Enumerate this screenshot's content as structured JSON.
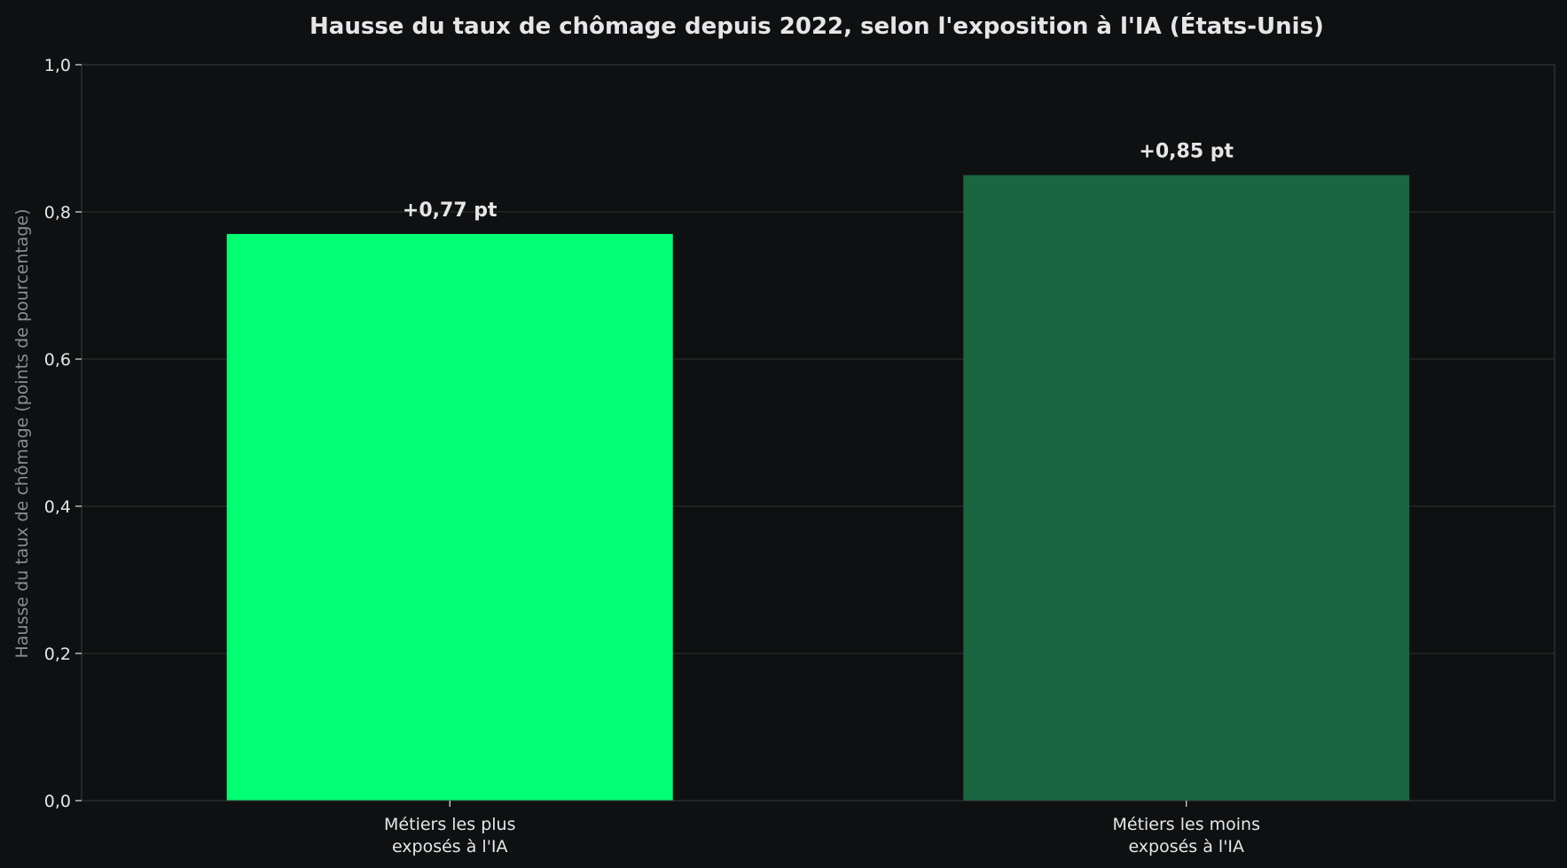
{
  "chart_data": {
    "type": "bar",
    "title": "Hausse du taux de chômage depuis 2022, selon l'exposition à l'IA (États-Unis)",
    "xlabel": "",
    "ylabel": "Hausse du taux de chômage (points de pourcentage)",
    "categories": [
      [
        "Métiers les plus",
        "exposés à l'IA"
      ],
      [
        "Métiers les moins",
        "exposés à l'IA"
      ]
    ],
    "values": [
      0.77,
      0.85
    ],
    "data_labels": [
      "+0,77 pt",
      "+0,85 pt"
    ],
    "bar_colors": [
      "#00ff73",
      "#1a6641"
    ],
    "ylim": [
      0,
      1.0
    ],
    "yticks": [
      {
        "value": 0.0,
        "label": "0,0"
      },
      {
        "value": 0.2,
        "label": "0,2"
      },
      {
        "value": 0.4,
        "label": "0,4"
      },
      {
        "value": 0.6,
        "label": "0,6"
      },
      {
        "value": 0.8,
        "label": "0,8"
      },
      {
        "value": 1.0,
        "label": "1,0"
      }
    ],
    "grid": true,
    "legend": "none"
  },
  "colors": {
    "background": "#0f1011",
    "grid": "#2b2d2e",
    "axis": "#3a3c3d",
    "text": "#e6e6e6",
    "ylabel_text": "#8a8c8d"
  }
}
